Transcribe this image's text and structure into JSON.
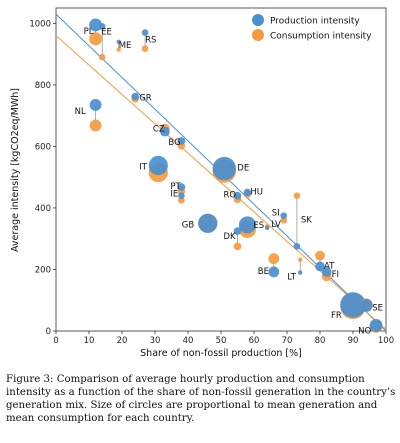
{
  "chart_data": {
    "type": "scatter",
    "xlabel": "Share of non-fossil production [%]",
    "ylabel": "Average intensity [kgCO2eq/MWh]",
    "xlim": [
      0,
      100
    ],
    "ylim": [
      0,
      1050
    ],
    "xticks": [
      0,
      10,
      20,
      30,
      40,
      50,
      60,
      70,
      80,
      90,
      100
    ],
    "yticks": [
      0,
      200,
      400,
      600,
      800,
      1000
    ],
    "grid": false,
    "legend_position": "top-right",
    "series": [
      {
        "name": "Production intensity",
        "color": "#4a8fd0"
      },
      {
        "name": "Consumption intensity",
        "color": "#f79a3e"
      }
    ],
    "regression_lines": [
      {
        "series": "Production intensity",
        "points": [
          [
            0,
            1030
          ],
          [
            100,
            0
          ]
        ]
      },
      {
        "series": "Consumption intensity",
        "points": [
          [
            0,
            960
          ],
          [
            100,
            5
          ]
        ]
      }
    ],
    "countries": [
      {
        "label": "PL",
        "x": 12.0,
        "prod": 995,
        "cons": 950,
        "size": 5
      },
      {
        "label": "EE",
        "x": 14.0,
        "prod": 990,
        "cons": 890,
        "size": 2
      },
      {
        "label": "ME",
        "x": 19.0,
        "prod": 940,
        "cons": 915,
        "size": 1
      },
      {
        "label": "RS",
        "x": 27.0,
        "prod": 970,
        "cons": 918,
        "size": 2
      },
      {
        "label": "GR",
        "x": 24.0,
        "prod": 762,
        "cons": 755,
        "size": 2.5
      },
      {
        "label": "NL",
        "x": 12.0,
        "prod": 735,
        "cons": 668,
        "size": 4.5
      },
      {
        "label": "CZ",
        "x": 33.0,
        "prod": 648,
        "cons": 658,
        "size": 3.5
      },
      {
        "label": "BG",
        "x": 38.0,
        "prod": 618,
        "cons": 602,
        "size": 2.5
      },
      {
        "label": "IT",
        "x": 31.0,
        "prod": 538,
        "cons": 515,
        "size": 8
      },
      {
        "label": "DE",
        "x": 51.0,
        "prod": 528,
        "cons": 520,
        "size": 10
      },
      {
        "label": "PT",
        "x": 38.0,
        "prod": 468,
        "cons": 455,
        "size": 2.5
      },
      {
        "label": "IE",
        "x": 38.0,
        "prod": 440,
        "cons": 425,
        "size": 2
      },
      {
        "label": "HU",
        "x": 58.0,
        "prod": 450,
        "cons": 445,
        "size": 2.5
      },
      {
        "label": "RO",
        "x": 55.0,
        "prod": 440,
        "cons": 428,
        "size": 2.5
      },
      {
        "label": "SK",
        "x": 73.0,
        "prod": 275,
        "cons": 440,
        "size": 2
      },
      {
        "label": "SI",
        "x": 69.0,
        "prod": 375,
        "cons": 360,
        "size": 2
      },
      {
        "label": "LV",
        "x": 64.0,
        "prod": 335,
        "cons": 340,
        "size": 1
      },
      {
        "label": "GB",
        "x": 46.0,
        "prod": 350,
        "cons": 350,
        "size": 8
      },
      {
        "label": "ES",
        "x": 58.0,
        "prod": 345,
        "cons": 330,
        "size": 7
      },
      {
        "label": "DK",
        "x": 55.0,
        "prod": 325,
        "cons": 275,
        "size": 2.5
      },
      {
        "label": "AT",
        "x": 80.0,
        "prod": 210,
        "cons": 245,
        "size": 3.5
      },
      {
        "label": "FI",
        "x": 82.0,
        "prod": 192,
        "cons": 178,
        "size": 3.5
      },
      {
        "label": "BE",
        "x": 66.0,
        "prod": 192,
        "cons": 235,
        "size": 4
      },
      {
        "label": "LT",
        "x": 74.0,
        "prod": 190,
        "cons": 232,
        "size": 1
      },
      {
        "label": "FR",
        "x": 90.0,
        "prod": 85,
        "cons": 80,
        "size": 11
      },
      {
        "label": "SE",
        "x": 94.0,
        "prod": 83,
        "cons": 85,
        "size": 5
      },
      {
        "label": "NO",
        "x": 97.0,
        "prod": 18,
        "cons": 15,
        "size": 5
      }
    ]
  },
  "caption": "Figure 3: Comparison of average hourly production and consumption intensity as a function of the share of non-fossil generation in the country’s generation mix. Size of circles are proportional to mean generation and mean consumption for each country."
}
